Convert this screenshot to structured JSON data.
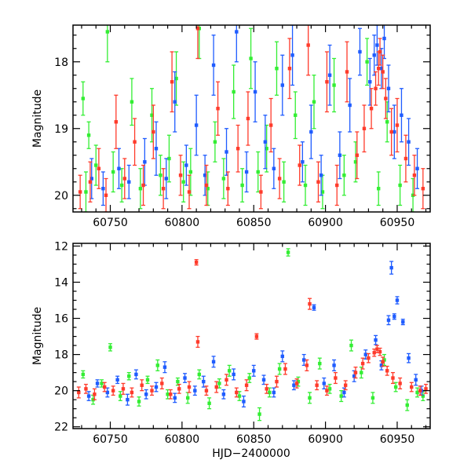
{
  "colors": {
    "green": "#33ee33",
    "blue": "#1f5cff",
    "red": "#ff3b2b",
    "axis": "#000000"
  },
  "chart_data": [
    {
      "type": "scatter",
      "title": "",
      "xlabel": "",
      "ylabel": "Magnitude",
      "xlim": [
        60724,
        60973
      ],
      "ylim": [
        20.25,
        17.45
      ],
      "xticks": [
        60750,
        60800,
        60850,
        60900,
        60950
      ],
      "xtick_labels": [
        "60750",
        "60800",
        "60850",
        "60900",
        "60950"
      ],
      "yticks": [
        18,
        19,
        20
      ],
      "ytick_labels": [
        "18",
        "19",
        "20"
      ],
      "series": [
        {
          "name": "green",
          "color": "#33ee33",
          "x": [
            60731,
            60733,
            60735,
            60740,
            60748,
            60752,
            60758,
            60765,
            60771,
            60779,
            60785,
            60791,
            60796,
            60801,
            60806,
            60812,
            60818,
            60823,
            60829,
            60836,
            60842,
            60848,
            60853,
            60859,
            60866,
            60871,
            60879,
            60886,
            60892,
            60898,
            60906,
            60913,
            60921,
            60929,
            60937,
            60943,
            60952,
            60961
          ],
          "y": [
            18.55,
            19.95,
            19.1,
            19.55,
            17.55,
            19.65,
            19.85,
            18.6,
            19.9,
            18.8,
            19.7,
            19.45,
            18.25,
            19.8,
            19.65,
            17.5,
            19.9,
            19.2,
            19.75,
            18.45,
            19.85,
            17.95,
            19.65,
            19.3,
            18.1,
            19.8,
            18.8,
            19.85,
            18.6,
            19.95,
            18.35,
            19.7,
            19.5,
            18.0,
            19.9,
            18.9,
            19.85,
            20.0
          ],
          "err": [
            0.25,
            0.3,
            0.2,
            0.3,
            0.45,
            0.3,
            0.25,
            0.35,
            0.3,
            0.4,
            0.3,
            0.35,
            0.4,
            0.3,
            0.35,
            0.45,
            0.25,
            0.3,
            0.3,
            0.4,
            0.25,
            0.45,
            0.3,
            0.35,
            0.4,
            0.3,
            0.35,
            0.3,
            0.4,
            0.25,
            0.4,
            0.3,
            0.3,
            0.35,
            0.25,
            0.3,
            0.3,
            0.25
          ]
        },
        {
          "name": "blue",
          "color": "#1f5cff",
          "x": [
            60737,
            60745,
            60756,
            60763,
            60774,
            60782,
            60789,
            60795,
            60803,
            60810,
            60816,
            60822,
            60831,
            60838,
            60845,
            60851,
            60858,
            60864,
            60870,
            60877,
            60884,
            60890,
            60897,
            60903,
            60910,
            60917,
            60924,
            60931,
            60934,
            60936,
            60939,
            60941,
            60944,
            60948,
            60953,
            60958,
            60964
          ],
          "y": [
            19.75,
            19.9,
            19.6,
            19.8,
            19.5,
            19.3,
            19.75,
            18.6,
            19.55,
            18.95,
            19.7,
            18.05,
            19.35,
            17.55,
            19.65,
            18.45,
            19.2,
            19.6,
            18.35,
            17.9,
            19.5,
            19.05,
            19.7,
            18.2,
            19.4,
            18.65,
            17.85,
            18.3,
            17.9,
            17.75,
            18.1,
            17.65,
            18.4,
            19.05,
            18.8,
            19.2,
            19.6
          ],
          "err": [
            0.3,
            0.25,
            0.3,
            0.25,
            0.35,
            0.4,
            0.3,
            0.45,
            0.3,
            0.45,
            0.3,
            0.45,
            0.35,
            0.45,
            0.3,
            0.45,
            0.4,
            0.3,
            0.45,
            0.45,
            0.3,
            0.4,
            0.3,
            0.45,
            0.35,
            0.4,
            0.35,
            0.35,
            0.3,
            0.3,
            0.3,
            0.3,
            0.35,
            0.4,
            0.4,
            0.35,
            0.3
          ]
        },
        {
          "name": "red",
          "color": "#ff3b2b",
          "x": [
            60729,
            60736,
            60742,
            60747,
            60754,
            60760,
            60767,
            60773,
            60780,
            60787,
            60793,
            60799,
            60805,
            60811,
            60817,
            60825,
            60832,
            60839,
            60846,
            60855,
            60862,
            60868,
            60875,
            60882,
            60888,
            60895,
            60901,
            60908,
            60915,
            60922,
            60927,
            60932,
            60935,
            60937,
            60938,
            60940,
            60942,
            60946,
            60950,
            60956,
            60962,
            60968
          ],
          "y": [
            19.95,
            19.8,
            19.6,
            20.0,
            18.9,
            19.75,
            19.2,
            19.85,
            19.05,
            19.9,
            18.3,
            19.7,
            19.95,
            17.5,
            19.85,
            18.7,
            19.9,
            19.3,
            18.85,
            19.95,
            18.95,
            19.75,
            18.1,
            19.55,
            17.75,
            19.8,
            18.3,
            19.85,
            18.15,
            19.4,
            19.0,
            18.7,
            18.4,
            18.1,
            17.85,
            18.15,
            18.55,
            19.05,
            18.95,
            19.45,
            19.7,
            19.9
          ],
          "err": [
            0.25,
            0.3,
            0.3,
            0.25,
            0.4,
            0.3,
            0.35,
            0.3,
            0.4,
            0.3,
            0.45,
            0.3,
            0.25,
            0.45,
            0.3,
            0.4,
            0.25,
            0.35,
            0.4,
            0.25,
            0.4,
            0.3,
            0.45,
            0.3,
            0.45,
            0.3,
            0.45,
            0.3,
            0.45,
            0.35,
            0.35,
            0.3,
            0.25,
            0.25,
            0.2,
            0.25,
            0.3,
            0.35,
            0.4,
            0.35,
            0.3,
            0.3
          ]
        }
      ]
    },
    {
      "type": "scatter",
      "title": "",
      "xlabel": "HJD−2400000",
      "ylabel": "Magnitude",
      "xlim": [
        60724,
        60973
      ],
      "ylim": [
        22.1,
        11.85
      ],
      "xticks": [
        60750,
        60800,
        60850,
        60900,
        60950
      ],
      "xtick_labels": [
        "60750",
        "60800",
        "60850",
        "60900",
        "60950"
      ],
      "yticks": [
        12,
        14,
        16,
        18,
        20,
        22
      ],
      "ytick_labels": [
        "12",
        "14",
        "16",
        "18",
        "20",
        "22"
      ],
      "series": [
        {
          "name": "green",
          "color": "#33ee33",
          "x": [
            60731,
            60738,
            60744,
            60750,
            60757,
            60763,
            60770,
            60776,
            60783,
            60790,
            60797,
            60804,
            60812,
            60819,
            60826,
            60833,
            60840,
            60847,
            60854,
            60861,
            60868,
            60874,
            60881,
            60889,
            60896,
            60903,
            60911,
            60918,
            60925,
            60933,
            60941,
            60949,
            60957,
            60964,
            60968
          ],
          "y": [
            19.1,
            20.5,
            19.6,
            17.6,
            20.3,
            19.2,
            20.6,
            19.4,
            18.6,
            20.2,
            19.5,
            20.4,
            19.1,
            20.7,
            19.6,
            18.9,
            20.3,
            19.3,
            21.3,
            20.1,
            18.8,
            12.35,
            19.5,
            20.4,
            18.5,
            19.9,
            20.3,
            17.5,
            19.0,
            20.4,
            18.3,
            19.8,
            20.8,
            20.1,
            20.3
          ],
          "err": [
            0.2,
            0.25,
            0.2,
            0.2,
            0.25,
            0.2,
            0.25,
            0.2,
            0.3,
            0.25,
            0.2,
            0.3,
            0.25,
            0.3,
            0.25,
            0.3,
            0.25,
            0.25,
            0.35,
            0.25,
            0.3,
            0.2,
            0.25,
            0.3,
            0.3,
            0.25,
            0.3,
            0.3,
            0.3,
            0.3,
            0.3,
            0.25,
            0.3,
            0.25,
            0.25
          ]
        },
        {
          "name": "blue",
          "color": "#1f5cff",
          "x": [
            60735,
            60741,
            60748,
            60755,
            60762,
            60768,
            60775,
            60782,
            60788,
            60795,
            60802,
            60809,
            60815,
            60822,
            60829,
            60836,
            60843,
            60850,
            60857,
            60864,
            60870,
            60878,
            60885,
            60892,
            60899,
            60906,
            60913,
            60920,
            60928,
            60935,
            60939,
            60944,
            60946,
            60948,
            60950,
            60954,
            60958,
            60963,
            60967
          ],
          "y": [
            20.3,
            19.6,
            20.1,
            19.4,
            20.5,
            19.1,
            20.2,
            19.8,
            18.7,
            20.4,
            19.3,
            20.0,
            19.5,
            18.4,
            20.2,
            19.1,
            20.6,
            18.9,
            19.4,
            20.1,
            18.1,
            19.7,
            18.3,
            15.4,
            19.6,
            18.6,
            20.1,
            19.2,
            18.0,
            17.2,
            18.6,
            16.1,
            13.2,
            15.9,
            15.0,
            16.2,
            18.2,
            19.4,
            20.0
          ],
          "err": [
            0.25,
            0.2,
            0.25,
            0.2,
            0.3,
            0.25,
            0.25,
            0.25,
            0.3,
            0.25,
            0.25,
            0.25,
            0.3,
            0.3,
            0.25,
            0.3,
            0.3,
            0.3,
            0.25,
            0.25,
            0.3,
            0.25,
            0.3,
            0.15,
            0.3,
            0.3,
            0.25,
            0.3,
            0.25,
            0.25,
            0.25,
            0.25,
            0.35,
            0.15,
            0.2,
            0.15,
            0.25,
            0.3,
            0.25
          ]
        },
        {
          "name": "red",
          "color": "#ff3b2b",
          "x": [
            60728,
            60733,
            60739,
            60746,
            60752,
            60759,
            60765,
            60772,
            60779,
            60786,
            60792,
            60798,
            60805,
            60810,
            60811,
            60817,
            60824,
            60831,
            60838,
            60845,
            60852,
            60859,
            60866,
            60872,
            60880,
            60887,
            60889,
            60894,
            60901,
            60907,
            60914,
            60921,
            60926,
            60930,
            60934,
            60936,
            60938,
            60940,
            60943,
            60947,
            60952,
            60960,
            60966,
            60970
          ],
          "y": [
            20.1,
            19.9,
            20.2,
            19.8,
            20.0,
            19.9,
            20.1,
            19.7,
            20.0,
            19.6,
            20.2,
            19.9,
            19.8,
            12.9,
            17.3,
            20.0,
            19.8,
            19.4,
            20.1,
            19.7,
            17.0,
            19.9,
            19.5,
            18.8,
            19.6,
            18.6,
            15.2,
            19.7,
            20.0,
            19.3,
            19.7,
            19.0,
            18.5,
            18.2,
            17.9,
            17.7,
            17.85,
            18.4,
            18.9,
            19.3,
            19.6,
            19.8,
            20.0,
            19.9
          ],
          "err": [
            0.3,
            0.25,
            0.3,
            0.25,
            0.25,
            0.3,
            0.25,
            0.3,
            0.25,
            0.3,
            0.25,
            0.25,
            0.3,
            0.15,
            0.3,
            0.25,
            0.3,
            0.3,
            0.25,
            0.3,
            0.15,
            0.25,
            0.3,
            0.3,
            0.25,
            0.3,
            0.3,
            0.25,
            0.25,
            0.3,
            0.25,
            0.3,
            0.3,
            0.25,
            0.2,
            0.2,
            0.2,
            0.25,
            0.25,
            0.3,
            0.3,
            0.25,
            0.25,
            0.25
          ]
        }
      ]
    }
  ]
}
